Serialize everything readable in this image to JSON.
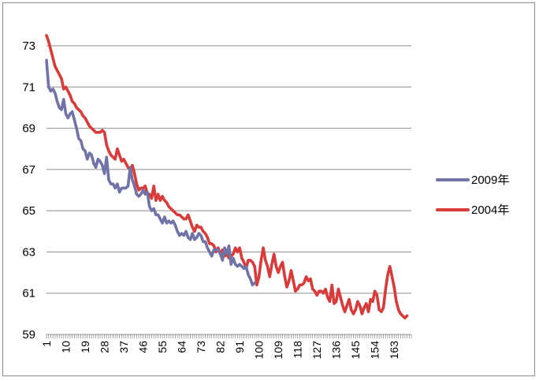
{
  "chart_data": {
    "type": "line",
    "title": "",
    "xlabel": "",
    "ylabel": "",
    "ylim": [
      59,
      73
    ],
    "xlim": [
      1,
      171
    ],
    "y_ticks": [
      59,
      61,
      63,
      65,
      67,
      69,
      71,
      73
    ],
    "x_tick_labels": [
      "1",
      "10",
      "19",
      "28",
      "37",
      "46",
      "55",
      "64",
      "73",
      "82",
      "91",
      "100",
      "109",
      "118",
      "127",
      "136",
      "145",
      "154",
      "163"
    ],
    "grid": "horizontal",
    "legend_position": "right",
    "series": [
      {
        "name": "2009年",
        "color": "#7173a7",
        "points": [
          [
            1,
            72.3
          ],
          [
            2,
            71.0
          ],
          [
            3,
            70.8
          ],
          [
            4,
            70.9
          ],
          [
            5,
            70.7
          ],
          [
            6,
            70.3
          ],
          [
            7,
            70.0
          ],
          [
            8,
            69.9
          ],
          [
            9,
            70.4
          ],
          [
            10,
            69.7
          ],
          [
            11,
            69.5
          ],
          [
            12,
            69.7
          ],
          [
            13,
            69.8
          ],
          [
            14,
            69.4
          ],
          [
            15,
            69.0
          ],
          [
            16,
            68.5
          ],
          [
            17,
            68.4
          ],
          [
            18,
            68.0
          ],
          [
            19,
            67.9
          ],
          [
            20,
            67.5
          ],
          [
            21,
            67.8
          ],
          [
            22,
            67.7
          ],
          [
            23,
            67.3
          ],
          [
            24,
            67.1
          ],
          [
            25,
            67.5
          ],
          [
            26,
            67.4
          ],
          [
            27,
            67.2
          ],
          [
            28,
            66.8
          ],
          [
            29,
            67.6
          ],
          [
            30,
            66.5
          ],
          [
            31,
            66.3
          ],
          [
            32,
            66.3
          ],
          [
            33,
            66.1
          ],
          [
            34,
            66.3
          ],
          [
            35,
            65.9
          ],
          [
            36,
            66.1
          ],
          [
            37,
            66.1
          ],
          [
            38,
            66.1
          ],
          [
            39,
            66.2
          ],
          [
            40,
            67.1
          ],
          [
            41,
            66.5
          ],
          [
            42,
            66.2
          ],
          [
            43,
            65.8
          ],
          [
            44,
            65.7
          ],
          [
            45,
            65.8
          ],
          [
            46,
            66.0
          ],
          [
            47,
            65.8
          ],
          [
            48,
            65.9
          ],
          [
            49,
            65.2
          ],
          [
            50,
            65.0
          ],
          [
            51,
            65.1
          ],
          [
            52,
            64.8
          ],
          [
            53,
            64.8
          ],
          [
            54,
            64.6
          ],
          [
            55,
            64.4
          ],
          [
            56,
            64.7
          ],
          [
            57,
            64.4
          ],
          [
            58,
            64.5
          ],
          [
            59,
            64.4
          ],
          [
            60,
            64.5
          ],
          [
            61,
            64.3
          ],
          [
            62,
            64.0
          ],
          [
            63,
            63.8
          ],
          [
            64,
            63.9
          ],
          [
            65,
            63.8
          ],
          [
            66,
            64.0
          ],
          [
            67,
            63.7
          ],
          [
            68,
            63.6
          ],
          [
            69,
            63.9
          ],
          [
            70,
            63.6
          ],
          [
            71,
            63.7
          ],
          [
            72,
            63.9
          ],
          [
            73,
            63.8
          ],
          [
            74,
            63.5
          ],
          [
            75,
            63.5
          ],
          [
            76,
            63.2
          ],
          [
            77,
            63.0
          ],
          [
            78,
            62.8
          ],
          [
            79,
            63.1
          ],
          [
            80,
            63.1
          ],
          [
            81,
            63.1
          ],
          [
            82,
            62.9
          ],
          [
            83,
            62.6
          ],
          [
            84,
            63.2
          ],
          [
            85,
            62.9
          ],
          [
            86,
            63.3
          ],
          [
            87,
            62.4
          ],
          [
            88,
            62.7
          ],
          [
            89,
            62.4
          ],
          [
            90,
            62.3
          ],
          [
            91,
            62.4
          ],
          [
            92,
            62.3
          ],
          [
            93,
            62.2
          ],
          [
            94,
            62.3
          ],
          [
            95,
            61.9
          ],
          [
            96,
            61.7
          ],
          [
            97,
            61.4
          ],
          [
            98,
            61.5
          ]
        ]
      },
      {
        "name": "2004年",
        "color": "#d93a3a",
        "points": [
          [
            1,
            73.5
          ],
          [
            2,
            73.2
          ],
          [
            3,
            72.8
          ],
          [
            4,
            72.4
          ],
          [
            5,
            72.0
          ],
          [
            6,
            71.8
          ],
          [
            7,
            71.6
          ],
          [
            8,
            71.4
          ],
          [
            9,
            70.9
          ],
          [
            10,
            71.0
          ],
          [
            11,
            70.8
          ],
          [
            12,
            70.6
          ],
          [
            13,
            70.3
          ],
          [
            14,
            70.2
          ],
          [
            15,
            70.0
          ],
          [
            16,
            69.9
          ],
          [
            17,
            69.8
          ],
          [
            18,
            69.6
          ],
          [
            19,
            69.5
          ],
          [
            20,
            69.3
          ],
          [
            21,
            69.1
          ],
          [
            22,
            69.0
          ],
          [
            23,
            68.9
          ],
          [
            24,
            68.8
          ],
          [
            25,
            68.8
          ],
          [
            26,
            68.8
          ],
          [
            27,
            68.9
          ],
          [
            28,
            68.8
          ],
          [
            29,
            68.2
          ],
          [
            30,
            67.9
          ],
          [
            31,
            67.7
          ],
          [
            32,
            67.6
          ],
          [
            33,
            67.5
          ],
          [
            34,
            68.0
          ],
          [
            35,
            67.7
          ],
          [
            36,
            67.4
          ],
          [
            37,
            67.5
          ],
          [
            38,
            67.3
          ],
          [
            39,
            67.1
          ],
          [
            40,
            67.0
          ],
          [
            41,
            67.2
          ],
          [
            42,
            66.8
          ],
          [
            43,
            66.3
          ],
          [
            44,
            66.0
          ],
          [
            45,
            66.1
          ],
          [
            46,
            66.1
          ],
          [
            47,
            66.2
          ],
          [
            48,
            65.8
          ],
          [
            49,
            65.8
          ],
          [
            50,
            65.6
          ],
          [
            51,
            66.2
          ],
          [
            52,
            65.5
          ],
          [
            53,
            65.8
          ],
          [
            54,
            65.5
          ],
          [
            55,
            65.7
          ],
          [
            56,
            65.5
          ],
          [
            57,
            65.4
          ],
          [
            58,
            65.2
          ],
          [
            59,
            65.1
          ],
          [
            60,
            65.0
          ],
          [
            61,
            64.9
          ],
          [
            62,
            64.8
          ],
          [
            63,
            64.8
          ],
          [
            64,
            64.7
          ],
          [
            65,
            64.6
          ],
          [
            66,
            64.6
          ],
          [
            67,
            64.8
          ],
          [
            68,
            64.5
          ],
          [
            69,
            64.2
          ],
          [
            70,
            64.0
          ],
          [
            71,
            64.3
          ],
          [
            72,
            64.2
          ],
          [
            73,
            64.2
          ],
          [
            74,
            64.0
          ],
          [
            75,
            63.9
          ],
          [
            76,
            63.7
          ],
          [
            77,
            63.4
          ],
          [
            78,
            63.4
          ],
          [
            79,
            63.3
          ],
          [
            80,
            63.0
          ],
          [
            81,
            63.2
          ],
          [
            82,
            62.9
          ],
          [
            83,
            63.1
          ],
          [
            84,
            62.8
          ],
          [
            85,
            62.9
          ],
          [
            86,
            62.7
          ],
          [
            87,
            62.8
          ],
          [
            88,
            62.9
          ],
          [
            89,
            63.2
          ],
          [
            90,
            63.0
          ],
          [
            91,
            63.2
          ],
          [
            92,
            62.7
          ],
          [
            93,
            62.5
          ],
          [
            94,
            62.2
          ],
          [
            95,
            62.6
          ],
          [
            96,
            62.6
          ],
          [
            97,
            62.5
          ],
          [
            98,
            62.3
          ],
          [
            99,
            61.4
          ],
          [
            100,
            61.8
          ],
          [
            101,
            62.6
          ],
          [
            102,
            63.2
          ],
          [
            103,
            62.6
          ],
          [
            104,
            62.3
          ],
          [
            105,
            61.8
          ],
          [
            106,
            62.4
          ],
          [
            107,
            62.9
          ],
          [
            108,
            62.3
          ],
          [
            109,
            62.0
          ],
          [
            110,
            62.3
          ],
          [
            111,
            62.5
          ],
          [
            112,
            61.8
          ],
          [
            113,
            61.3
          ],
          [
            114,
            61.6
          ],
          [
            115,
            62.1
          ],
          [
            116,
            61.6
          ],
          [
            117,
            61.1
          ],
          [
            118,
            61.2
          ],
          [
            119,
            61.4
          ],
          [
            120,
            61.4
          ],
          [
            121,
            61.5
          ],
          [
            122,
            61.8
          ],
          [
            123,
            61.6
          ],
          [
            124,
            61.7
          ],
          [
            125,
            61.2
          ],
          [
            126,
            61.1
          ],
          [
            127,
            60.9
          ],
          [
            128,
            61.1
          ],
          [
            129,
            61.1
          ],
          [
            130,
            61.0
          ],
          [
            131,
            61.2
          ],
          [
            132,
            60.8
          ],
          [
            133,
            60.6
          ],
          [
            134,
            61.4
          ],
          [
            135,
            60.5
          ],
          [
            136,
            60.6
          ],
          [
            137,
            61.2
          ],
          [
            138,
            60.8
          ],
          [
            139,
            60.4
          ],
          [
            140,
            60.1
          ],
          [
            141,
            60.4
          ],
          [
            142,
            60.7
          ],
          [
            143,
            60.2
          ],
          [
            144,
            60.0
          ],
          [
            145,
            60.2
          ],
          [
            146,
            60.6
          ],
          [
            147,
            60.4
          ],
          [
            148,
            60.0
          ],
          [
            149,
            60.3
          ],
          [
            150,
            60.5
          ],
          [
            151,
            60.1
          ],
          [
            152,
            60.7
          ],
          [
            153,
            60.6
          ],
          [
            154,
            61.1
          ],
          [
            155,
            60.9
          ],
          [
            156,
            60.2
          ],
          [
            157,
            60.1
          ],
          [
            158,
            60.3
          ],
          [
            159,
            61.2
          ],
          [
            160,
            61.9
          ],
          [
            161,
            62.3
          ],
          [
            162,
            61.8
          ],
          [
            163,
            61.3
          ],
          [
            164,
            60.6
          ],
          [
            165,
            60.2
          ],
          [
            166,
            60.0
          ],
          [
            167,
            59.9
          ],
          [
            168,
            59.8
          ],
          [
            169,
            59.9
          ]
        ]
      }
    ]
  }
}
